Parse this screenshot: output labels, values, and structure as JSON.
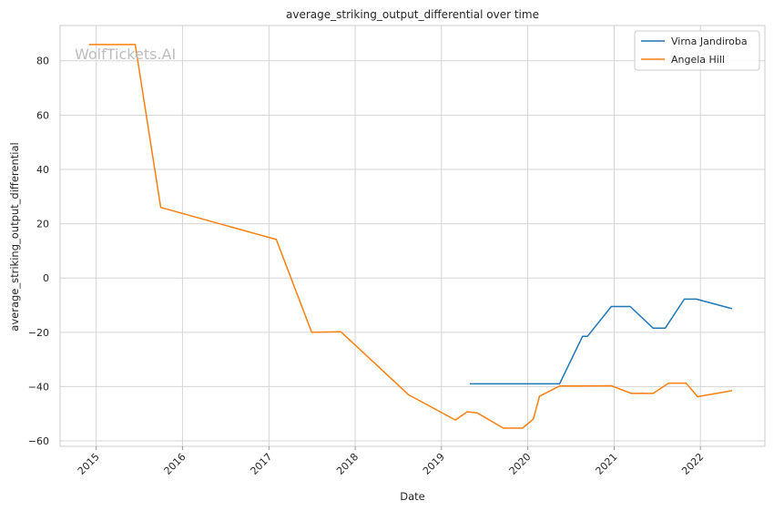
{
  "watermark": "WolfTickets.AI",
  "chart_data": {
    "type": "line",
    "title": "average_striking_output_differential over time",
    "xlabel": "Date",
    "ylabel": "average_striking_output_differential",
    "xlim": [
      "2014-08-01",
      "2022-10-01"
    ],
    "ylim": [
      -62,
      93
    ],
    "x_ticks": [
      {
        "date": "2015-01-01",
        "label": "2015"
      },
      {
        "date": "2016-01-01",
        "label": "2016"
      },
      {
        "date": "2017-01-01",
        "label": "2017"
      },
      {
        "date": "2018-01-01",
        "label": "2018"
      },
      {
        "date": "2019-01-01",
        "label": "2019"
      },
      {
        "date": "2020-01-01",
        "label": "2020"
      },
      {
        "date": "2021-01-01",
        "label": "2021"
      },
      {
        "date": "2022-01-01",
        "label": "2022"
      }
    ],
    "y_ticks": [
      {
        "value": 80,
        "label": "80"
      },
      {
        "value": 60,
        "label": "60"
      },
      {
        "value": 40,
        "label": "40"
      },
      {
        "value": 20,
        "label": "20"
      },
      {
        "value": 0,
        "label": "0"
      },
      {
        "value": -20,
        "label": "−20"
      },
      {
        "value": -40,
        "label": "−40"
      },
      {
        "value": -60,
        "label": "−60"
      }
    ],
    "grid": true,
    "legend_position": "top-right",
    "series": [
      {
        "name": "Virna Jandiroba",
        "color": "#1f77b4",
        "points": [
          {
            "x": "2019-05-01",
            "y": -39
          },
          {
            "x": "2020-05-15",
            "y": -39
          },
          {
            "x": "2020-08-20",
            "y": -21.5
          },
          {
            "x": "2020-09-10",
            "y": -21.5
          },
          {
            "x": "2020-12-20",
            "y": -10.5
          },
          {
            "x": "2021-03-10",
            "y": -10.5
          },
          {
            "x": "2021-06-15",
            "y": -18.5
          },
          {
            "x": "2021-08-05",
            "y": -18.5
          },
          {
            "x": "2021-10-25",
            "y": -7.8
          },
          {
            "x": "2021-12-15",
            "y": -7.8
          },
          {
            "x": "2022-05-15",
            "y": -11.3
          }
        ]
      },
      {
        "name": "Angela Hill",
        "color": "#ff7f0e",
        "points": [
          {
            "x": "2014-12-01",
            "y": 86
          },
          {
            "x": "2015-06-15",
            "y": 86
          },
          {
            "x": "2015-10-01",
            "y": 26
          },
          {
            "x": "2017-02-01",
            "y": 14.2
          },
          {
            "x": "2017-07-01",
            "y": -20
          },
          {
            "x": "2017-11-01",
            "y": -19.8
          },
          {
            "x": "2018-03-01",
            "y": -29.5
          },
          {
            "x": "2018-08-15",
            "y": -43
          },
          {
            "x": "2019-03-01",
            "y": -52.3
          },
          {
            "x": "2019-04-20",
            "y": -49.3
          },
          {
            "x": "2019-06-01",
            "y": -49.7
          },
          {
            "x": "2019-09-20",
            "y": -55.3
          },
          {
            "x": "2019-12-10",
            "y": -55.3
          },
          {
            "x": "2020-01-25",
            "y": -52
          },
          {
            "x": "2020-02-20",
            "y": -43.5
          },
          {
            "x": "2020-05-15",
            "y": -39.8
          },
          {
            "x": "2020-08-10",
            "y": -39.8
          },
          {
            "x": "2020-12-20",
            "y": -39.7
          },
          {
            "x": "2021-03-15",
            "y": -42.5
          },
          {
            "x": "2021-06-15",
            "y": -42.5
          },
          {
            "x": "2021-08-20",
            "y": -38.7
          },
          {
            "x": "2021-11-01",
            "y": -38.7
          },
          {
            "x": "2021-12-20",
            "y": -43.7
          },
          {
            "x": "2022-05-15",
            "y": -41.5
          }
        ]
      }
    ]
  }
}
